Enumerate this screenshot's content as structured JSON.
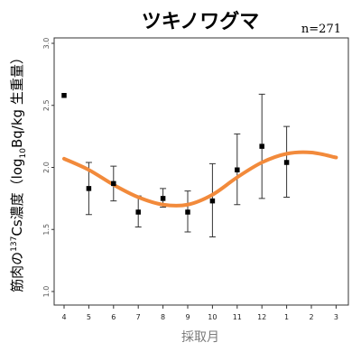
{
  "chart_data": {
    "type": "scatter",
    "title": "ツキノワグマ",
    "annotation": "n=271",
    "xlabel": "採取月",
    "ylabel_parts": {
      "before_superscript": "筋肉の",
      "superscript": "137",
      "middle": "Cs濃度（log",
      "subscript": "10",
      "after_subscript": "Bq/kg 生重量）"
    },
    "x_ticks": [
      "4",
      "5",
      "6",
      "7",
      "8",
      "9",
      "10",
      "11",
      "12",
      "1",
      "2",
      "3"
    ],
    "y_ticks": [
      "1.0",
      "1.5",
      "2.0",
      "2.5",
      "3.0"
    ],
    "ylim": [
      1.0,
      3.0
    ],
    "grid": false,
    "points": [
      {
        "month": "4",
        "mean": 2.58
      },
      {
        "month": "5",
        "mean": 1.83,
        "low": 1.62,
        "high": 2.04
      },
      {
        "month": "6",
        "mean": 1.87,
        "low": 1.73,
        "high": 2.01
      },
      {
        "month": "7",
        "mean": 1.64,
        "low": 1.52,
        "high": 1.77
      },
      {
        "month": "8",
        "mean": 1.75,
        "low": 1.68,
        "high": 1.83
      },
      {
        "month": "9",
        "mean": 1.64,
        "low": 1.48,
        "high": 1.81
      },
      {
        "month": "10",
        "mean": 1.73,
        "low": 1.44,
        "high": 2.03
      },
      {
        "month": "11",
        "mean": 1.98,
        "low": 1.7,
        "high": 2.27
      },
      {
        "month": "12",
        "mean": 2.17,
        "low": 1.75,
        "high": 2.59
      },
      {
        "month": "1",
        "mean": 2.04,
        "low": 1.76,
        "high": 2.33
      }
    ],
    "trend_line": {
      "x": [
        "4",
        "5",
        "6",
        "7",
        "8",
        "9",
        "10",
        "11",
        "12",
        "1",
        "2",
        "3"
      ],
      "y": [
        2.07,
        1.98,
        1.86,
        1.76,
        1.7,
        1.7,
        1.78,
        1.92,
        2.04,
        2.11,
        2.12,
        2.08
      ]
    },
    "colors": {
      "trend": "#f28a3b",
      "points": "#000000",
      "error_bars": "#333333",
      "axis": "#333333"
    }
  }
}
